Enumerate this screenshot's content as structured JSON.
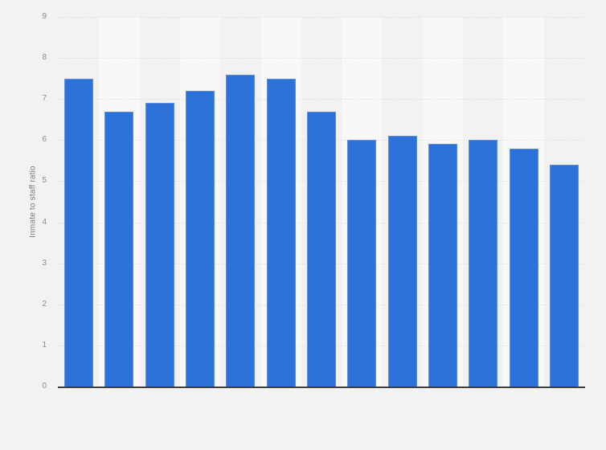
{
  "page": {
    "background": "#f2f2f2"
  },
  "y_axis": {
    "title": "Inmate to staff ratio",
    "tick_labels": [
      "0",
      "1",
      "2",
      "3",
      "4",
      "5",
      "6",
      "7",
      "8",
      "9"
    ]
  },
  "chart_data": {
    "type": "bar",
    "title": "",
    "xlabel": "",
    "ylabel": "Inmate to staff ratio",
    "values": [
      7.5,
      6.7,
      6.9,
      7.2,
      7.6,
      7.5,
      6.7,
      6.0,
      6.1,
      5.9,
      6.0,
      5.8,
      5.4
    ],
    "n_bars": 13,
    "ylim": [
      0,
      9
    ],
    "ytick_step": 1,
    "x_tick_labels_visible": false,
    "grid": "horizontal-dotted",
    "legend_position": "none",
    "colors": {
      "bar_fill": "#2c72d9",
      "bar_border": "#5d8ee2",
      "band_light": "#f8f8f8",
      "band_dark": "#f2f2f2",
      "gridline": "#d8d8d8",
      "baseline": "#3d3d3d",
      "tick_label": "#8b8b8b",
      "axis_title": "#7a7a7a"
    }
  }
}
